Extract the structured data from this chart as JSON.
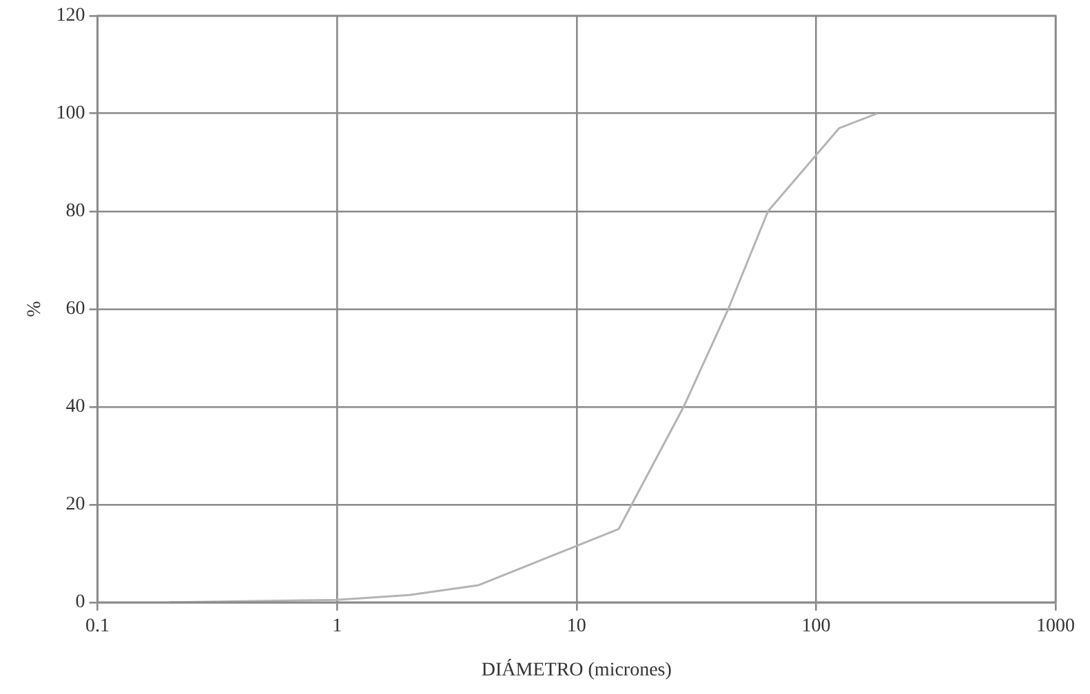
{
  "chart_data": {
    "type": "line",
    "xlabel": "DIÁMETRO (micrones)",
    "ylabel": "%",
    "log": "x",
    "grid": true,
    "marker": "none",
    "line_style": "solid",
    "legend": false,
    "xlim": [
      0.1,
      1000
    ],
    "xticks": [
      0.1,
      1,
      10,
      100,
      1000
    ],
    "ylim": [
      0,
      120
    ],
    "yticks": [
      0,
      20,
      40,
      60,
      80,
      100,
      120
    ],
    "series": [
      {
        "color": "#b4b4b4",
        "x": [
          0.2,
          1,
          2,
          3.9,
          15,
          28,
          43,
          63,
          125,
          180
        ],
        "values": [
          0,
          0.5,
          1.5,
          3.5,
          15,
          40,
          60,
          80,
          97,
          100
        ]
      }
    ]
  }
}
